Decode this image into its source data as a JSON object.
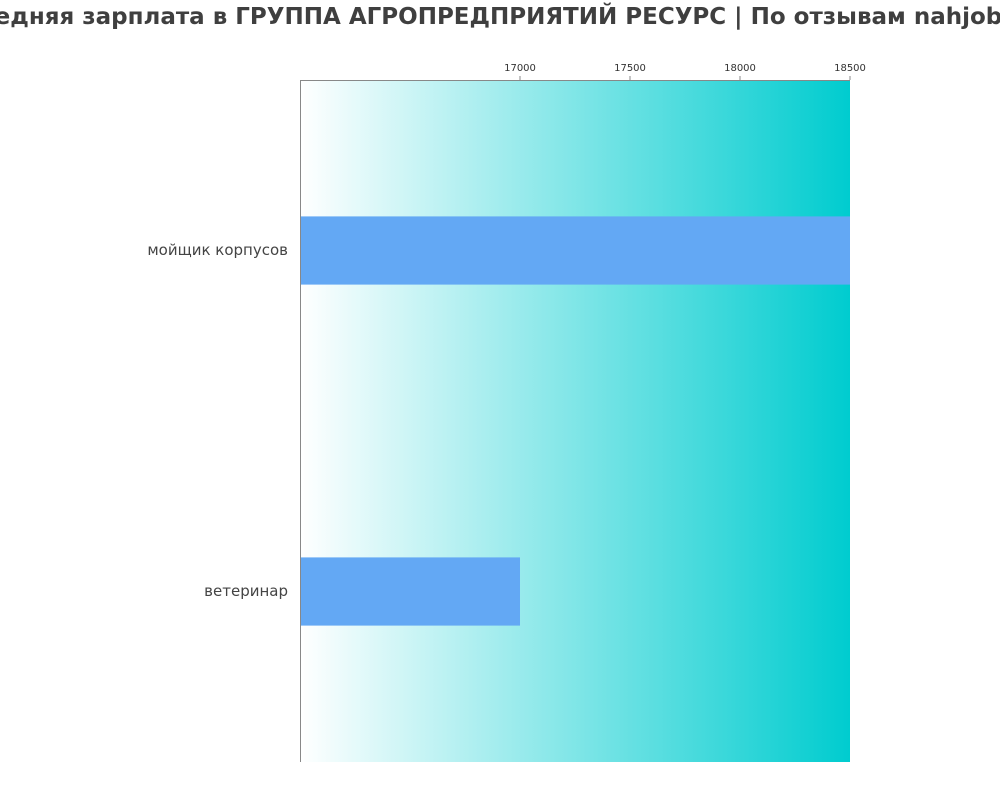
{
  "chart_data": {
    "type": "bar",
    "orientation": "horizontal",
    "title": "Средняя зарплата в ГРУППА АГРОПРЕДПРИЯТИЙ РЕСУРС | По отзывам nahjob.ru",
    "categories": [
      "мойщик корпусов",
      "ветеринар"
    ],
    "series": [
      {
        "values": [
          18500,
          17000
        ]
      }
    ],
    "xticks": [
      17000,
      17500,
      18000,
      18500
    ],
    "xtick_labels": [
      "17000",
      "17500",
      "18000",
      "18500"
    ],
    "xlim": [
      16000,
      18500
    ],
    "xaxis_position": "top",
    "grid": false,
    "colors": {
      "bar": "#63a8f4",
      "background_start": "#ffffff",
      "background_end": "#00cccf",
      "axis": "#888888",
      "title": "#3f3f3f"
    }
  }
}
